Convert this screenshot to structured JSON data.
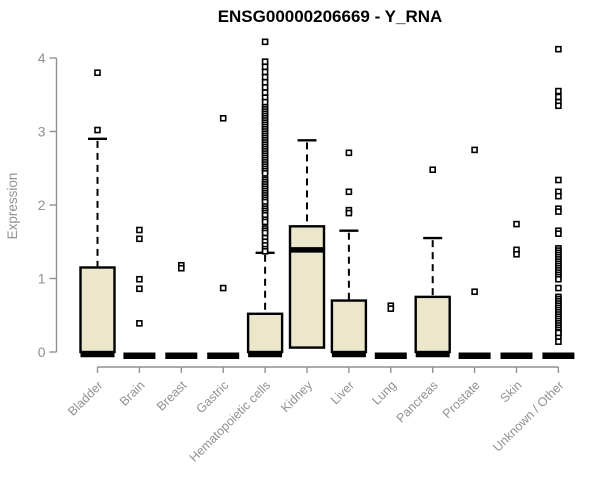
{
  "colors": {
    "background": "#ffffff",
    "box_fill": "#ece6cb",
    "box_stroke": "#000000",
    "median": "#000000",
    "outlier_fill": "#ffffff",
    "axis": "#919191",
    "tick_label": "#919191",
    "title_text": "#000000"
  },
  "chart_data": {
    "type": "boxplot",
    "title": "ENSG00000206669 - Y_RNA",
    "ylabel": "Expression",
    "xlabel": "",
    "ylim": [
      0,
      4.3
    ],
    "yticks": [
      0,
      1,
      2,
      3,
      4
    ],
    "grid": false,
    "legend": "none",
    "categories": [
      "Bladder",
      "Brain",
      "Breast",
      "Gastric",
      "Hematopoietic cells",
      "Kidney",
      "Liver",
      "Lung",
      "Pancreas",
      "Prostate",
      "Skin",
      "Unknown / Other"
    ],
    "boxes": [
      {
        "category": "Bladder",
        "q1": 0,
        "median": 0.02,
        "q3": 1.15,
        "whisker_low": 0,
        "whisker_high": 2.9,
        "outliers": [
          3.8,
          3.02
        ]
      },
      {
        "category": "Brain",
        "q1": 0,
        "median": 0.02,
        "q3": 0.03,
        "whisker_low": 0,
        "whisker_high": 0.03,
        "outliers": [
          1.66,
          1.54,
          0.99,
          0.86,
          0.39
        ]
      },
      {
        "category": "Breast",
        "q1": 0,
        "median": 0.02,
        "q3": 0.03,
        "whisker_low": 0,
        "whisker_high": 0.03,
        "outliers": [
          1.18,
          1.14
        ]
      },
      {
        "category": "Gastric",
        "q1": 0,
        "median": 0.02,
        "q3": 0.03,
        "whisker_low": 0,
        "whisker_high": 0.03,
        "outliers": [
          3.18,
          0.87
        ]
      },
      {
        "category": "Hematopoietic cells",
        "q1": 0,
        "median": 0.02,
        "q3": 0.52,
        "whisker_low": 0,
        "whisker_high": 1.35,
        "outliers": [
          4.22,
          3.95,
          3.88,
          3.81,
          3.74,
          3.67,
          3.6,
          3.53,
          3.46,
          3.4,
          3.33,
          3.3,
          3.27,
          3.24,
          3.21,
          3.18,
          3.15,
          3.12,
          3.09,
          3.06,
          3.03,
          3.0,
          2.97,
          2.94,
          2.91,
          2.88,
          2.85,
          2.82,
          2.79,
          2.76,
          2.73,
          2.7,
          2.67,
          2.64,
          2.61,
          2.58,
          2.55,
          2.52,
          2.49,
          2.46,
          2.43,
          2.34,
          2.31,
          2.28,
          2.25,
          2.22,
          2.19,
          2.16,
          2.13,
          2.1,
          2.07,
          2.04,
          1.98,
          1.95,
          1.92,
          1.89,
          1.86,
          1.8,
          1.77,
          1.68,
          1.65,
          1.62,
          1.55,
          1.5,
          1.45,
          1.4,
          1.37
        ]
      },
      {
        "category": "Kidney",
        "q1": 0.06,
        "median": 1.39,
        "q3": 1.71,
        "whisker_low": 0.06,
        "whisker_high": 2.88,
        "outliers": []
      },
      {
        "category": "Liver",
        "q1": 0,
        "median": 0.02,
        "q3": 0.7,
        "whisker_low": 0,
        "whisker_high": 1.65,
        "outliers": [
          2.71,
          2.18,
          1.93,
          1.89
        ]
      },
      {
        "category": "Lung",
        "q1": 0,
        "median": 0.02,
        "q3": 0.03,
        "whisker_low": 0,
        "whisker_high": 0.03,
        "outliers": [
          0.63,
          0.59
        ]
      },
      {
        "category": "Pancreas",
        "q1": 0,
        "median": 0.02,
        "q3": 0.75,
        "whisker_low": 0,
        "whisker_high": 1.55,
        "outliers": [
          2.48
        ]
      },
      {
        "category": "Prostate",
        "q1": 0,
        "median": 0.02,
        "q3": 0.03,
        "whisker_low": 0,
        "whisker_high": 0.03,
        "outliers": [
          2.75,
          0.82
        ]
      },
      {
        "category": "Skin",
        "q1": 0,
        "median": 0.02,
        "q3": 0.03,
        "whisker_low": 0,
        "whisker_high": 0.03,
        "outliers": [
          1.74,
          1.39,
          1.33
        ]
      },
      {
        "category": "Unknown / Other",
        "q1": 0,
        "median": 0.02,
        "q3": 0.03,
        "whisker_low": 0,
        "whisker_high": 0.03,
        "outliers": [
          4.12,
          3.55,
          3.47,
          3.4,
          3.35,
          2.34,
          2.18,
          2.12,
          1.95,
          1.91,
          1.65,
          1.61,
          1.41,
          1.38,
          1.35,
          1.32,
          1.29,
          1.26,
          1.23,
          1.2,
          1.17,
          1.14,
          1.11,
          1.08,
          1.05,
          1.02,
          0.99,
          0.87,
          0.75,
          0.72,
          0.69,
          0.66,
          0.63,
          0.6,
          0.57,
          0.54,
          0.51,
          0.48,
          0.45,
          0.42,
          0.39,
          0.36,
          0.33,
          0.3,
          0.27,
          0.24,
          0.21,
          0.26,
          0.14
        ]
      }
    ]
  }
}
